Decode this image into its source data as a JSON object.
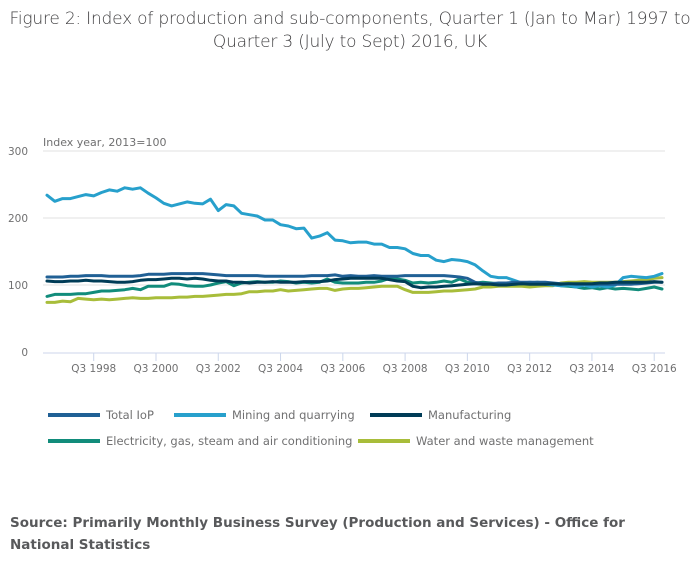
{
  "title": "Figure 2: Index of production and sub-components, Quarter 1 (Jan to Mar) 1997 to Quarter 3 (July to Sept) 2016, UK",
  "source": "Source: Primarily Monthly Business Survey (Production and Services) - Office for National Statistics",
  "chart_data": {
    "type": "line",
    "title": "Figure 2: Index of production and sub-components, Quarter 1 (Jan to Mar) 1997 to Quarter 3 (July to Sept) 2016, UK",
    "ylabel": "Index year, 2013=100",
    "xlabel": "",
    "ylim": [
      0,
      300
    ],
    "yticks": [
      0,
      100,
      200,
      300
    ],
    "grid": true,
    "legend_position": "bottom",
    "x_start": "Q1 1997",
    "x_end": "Q3 2016",
    "xtick_labels": [
      "Q3 1998",
      "Q3 2000",
      "Q3 2002",
      "Q3 2004",
      "Q3 2006",
      "Q3 2008",
      "Q3 2010",
      "Q3 2012",
      "Q3 2014",
      "Q3 2016"
    ],
    "xtick_index": [
      6,
      14,
      22,
      30,
      38,
      46,
      54,
      62,
      70,
      78
    ],
    "series": [
      {
        "name": "Total IoP",
        "color": "#206095",
        "values": [
          112,
          112,
          112,
          113,
          113,
          114,
          114,
          114,
          113,
          113,
          113,
          113,
          114,
          116,
          116,
          116,
          117,
          117,
          117,
          117,
          117,
          116,
          115,
          114,
          114,
          114,
          114,
          114,
          113,
          113,
          113,
          113,
          113,
          113,
          114,
          114,
          114,
          115,
          113,
          114,
          113,
          113,
          114,
          113,
          113,
          113,
          114,
          114,
          114,
          114,
          114,
          114,
          113,
          112,
          110,
          104,
          102,
          102,
          103,
          103,
          104,
          104,
          104,
          104,
          104,
          103,
          102,
          102,
          101,
          101,
          101,
          101,
          101,
          101,
          101,
          101,
          102,
          103,
          104,
          104
        ]
      },
      {
        "name": "Mining and quarrying",
        "color": "#27a0cc",
        "values": [
          234,
          225,
          229,
          229,
          232,
          235,
          233,
          238,
          242,
          240,
          245,
          243,
          245,
          237,
          230,
          222,
          218,
          221,
          224,
          222,
          221,
          228,
          211,
          220,
          218,
          207,
          205,
          203,
          197,
          197,
          190,
          188,
          184,
          185,
          170,
          173,
          178,
          167,
          166,
          163,
          164,
          164,
          161,
          161,
          156,
          156,
          154,
          147,
          144,
          144,
          137,
          135,
          138,
          137,
          135,
          130,
          121,
          113,
          111,
          111,
          107,
          103,
          104,
          103,
          101,
          100,
          99,
          100,
          97,
          100,
          97,
          99,
          97,
          100,
          111,
          113,
          112,
          111,
          113,
          117
        ]
      },
      {
        "name": "Manufacturing",
        "color": "#003c57",
        "values": [
          106,
          105,
          105,
          106,
          106,
          107,
          106,
          106,
          105,
          104,
          104,
          105,
          107,
          108,
          108,
          109,
          110,
          110,
          109,
          110,
          109,
          107,
          106,
          106,
          104,
          104,
          103,
          104,
          104,
          105,
          104,
          104,
          104,
          105,
          105,
          105,
          106,
          108,
          109,
          110,
          110,
          110,
          110,
          110,
          108,
          106,
          105,
          98,
          96,
          97,
          97,
          98,
          99,
          100,
          101,
          102,
          101,
          101,
          100,
          100,
          101,
          102,
          101,
          101,
          101,
          102,
          101,
          102,
          102,
          102,
          102,
          103,
          103,
          104,
          104,
          104,
          104,
          104,
          105,
          104
        ]
      },
      {
        "name": "Electricity, gas, steam and air conditioning",
        "color": "#118c7b",
        "values": [
          83,
          86,
          86,
          86,
          87,
          87,
          89,
          91,
          91,
          92,
          93,
          95,
          93,
          98,
          98,
          98,
          102,
          101,
          99,
          98,
          98,
          100,
          103,
          105,
          99,
          103,
          104,
          105,
          104,
          104,
          106,
          105,
          103,
          104,
          103,
          104,
          109,
          104,
          103,
          103,
          103,
          104,
          104,
          106,
          110,
          109,
          107,
          103,
          104,
          103,
          104,
          106,
          104,
          109,
          104,
          103,
          104,
          103,
          102,
          101,
          101,
          102,
          103,
          104,
          103,
          101,
          99,
          98,
          97,
          95,
          96,
          94,
          96,
          94,
          95,
          94,
          93,
          95,
          97,
          94
        ]
      },
      {
        "name": "Water and waste management",
        "color": "#a8bd3a",
        "values": [
          74,
          74,
          76,
          75,
          80,
          79,
          78,
          79,
          78,
          79,
          80,
          81,
          80,
          80,
          81,
          81,
          81,
          82,
          82,
          83,
          83,
          84,
          85,
          86,
          86,
          87,
          90,
          90,
          91,
          91,
          93,
          91,
          92,
          93,
          94,
          95,
          95,
          92,
          94,
          95,
          95,
          96,
          97,
          98,
          98,
          98,
          93,
          89,
          89,
          89,
          90,
          91,
          91,
          92,
          93,
          94,
          97,
          97,
          98,
          98,
          98,
          98,
          97,
          98,
          99,
          99,
          103,
          104,
          104,
          105,
          104,
          104,
          104,
          104,
          105,
          106,
          107,
          108,
          110,
          111
        ]
      }
    ]
  },
  "legend": [
    {
      "label": "Total IoP",
      "color": "#206095"
    },
    {
      "label": "Mining and quarrying",
      "color": "#27a0cc"
    },
    {
      "label": "Manufacturing",
      "color": "#003c57"
    },
    {
      "label": "Electricity, gas, steam and air conditioning",
      "color": "#118c7b"
    },
    {
      "label": "Water and waste management",
      "color": "#a8bd3a"
    }
  ]
}
